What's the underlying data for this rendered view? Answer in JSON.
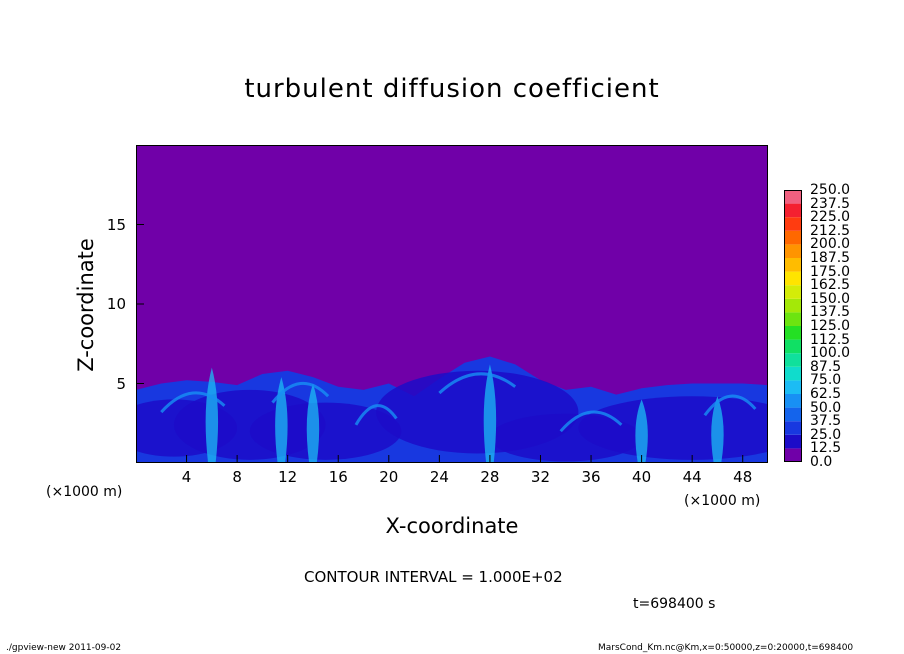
{
  "chart_data": {
    "type": "heatmap",
    "title": "turbulent diffusion coefficient",
    "xlabel": "X-coordinate",
    "ylabel": "Z-coordinate",
    "x_unit": "(×1000 m)",
    "y_unit": "(×1000 m)",
    "xlim": [
      0,
      50
    ],
    "ylim": [
      0,
      20
    ],
    "xticks": [
      "4",
      "8",
      "12",
      "16",
      "20",
      "24",
      "28",
      "32",
      "36",
      "40",
      "44",
      "48"
    ],
    "xtick_values": [
      4,
      8,
      12,
      16,
      20,
      24,
      28,
      32,
      36,
      40,
      44,
      48
    ],
    "yticks": [
      "5",
      "10",
      "15"
    ],
    "ytick_values": [
      5,
      10,
      15
    ],
    "colorbar": {
      "levels": [
        "0.0",
        "12.5",
        "25.0",
        "37.5",
        "50.0",
        "62.5",
        "75.0",
        "87.5",
        "100.0",
        "112.5",
        "125.0",
        "137.5",
        "150.0",
        "162.5",
        "175.0",
        "187.5",
        "200.0",
        "212.5",
        "225.0",
        "237.5",
        "250.0"
      ],
      "level_values": [
        0,
        12.5,
        25,
        37.5,
        50,
        62.5,
        75,
        87.5,
        100,
        112.5,
        125,
        137.5,
        150,
        162.5,
        175,
        187.5,
        200,
        212.5,
        225,
        237.5,
        250
      ],
      "colors": [
        "#7000a8",
        "#1c0cc8",
        "#1838e0",
        "#1464ec",
        "#1890f4",
        "#1cbcf4",
        "#10dccc",
        "#10e09c",
        "#10e064",
        "#24e024",
        "#6ce410",
        "#a4e808",
        "#d4ec08",
        "#ffe400",
        "#ffbc00",
        "#ff9400",
        "#ff6800",
        "#ff3c10",
        "#f42030",
        "#f06080"
      ]
    },
    "boundary_layer": {
      "x": [
        0,
        2,
        4,
        6,
        8,
        10,
        12,
        14,
        16,
        18,
        20,
        22,
        24,
        26,
        28,
        30,
        32,
        34,
        36,
        38,
        40,
        42,
        44,
        46,
        48,
        50
      ],
      "top": [
        4.6,
        5.0,
        5.2,
        5.1,
        4.9,
        5.6,
        5.8,
        5.4,
        4.8,
        4.6,
        5.0,
        4.2,
        5.3,
        6.3,
        6.7,
        6.2,
        5.2,
        4.6,
        4.8,
        4.3,
        4.7,
        4.9,
        5.0,
        5.0,
        5.0,
        4.9
      ]
    },
    "contour_interval": "CONTOUR INTERVAL = 1.000E+02",
    "time": "t=698400 s"
  },
  "footer": {
    "left": "./gpview-new   2011-09-02",
    "right": "MarsCond_Km.nc@Km,x=0:50000,z=0:20000,t=698400"
  }
}
